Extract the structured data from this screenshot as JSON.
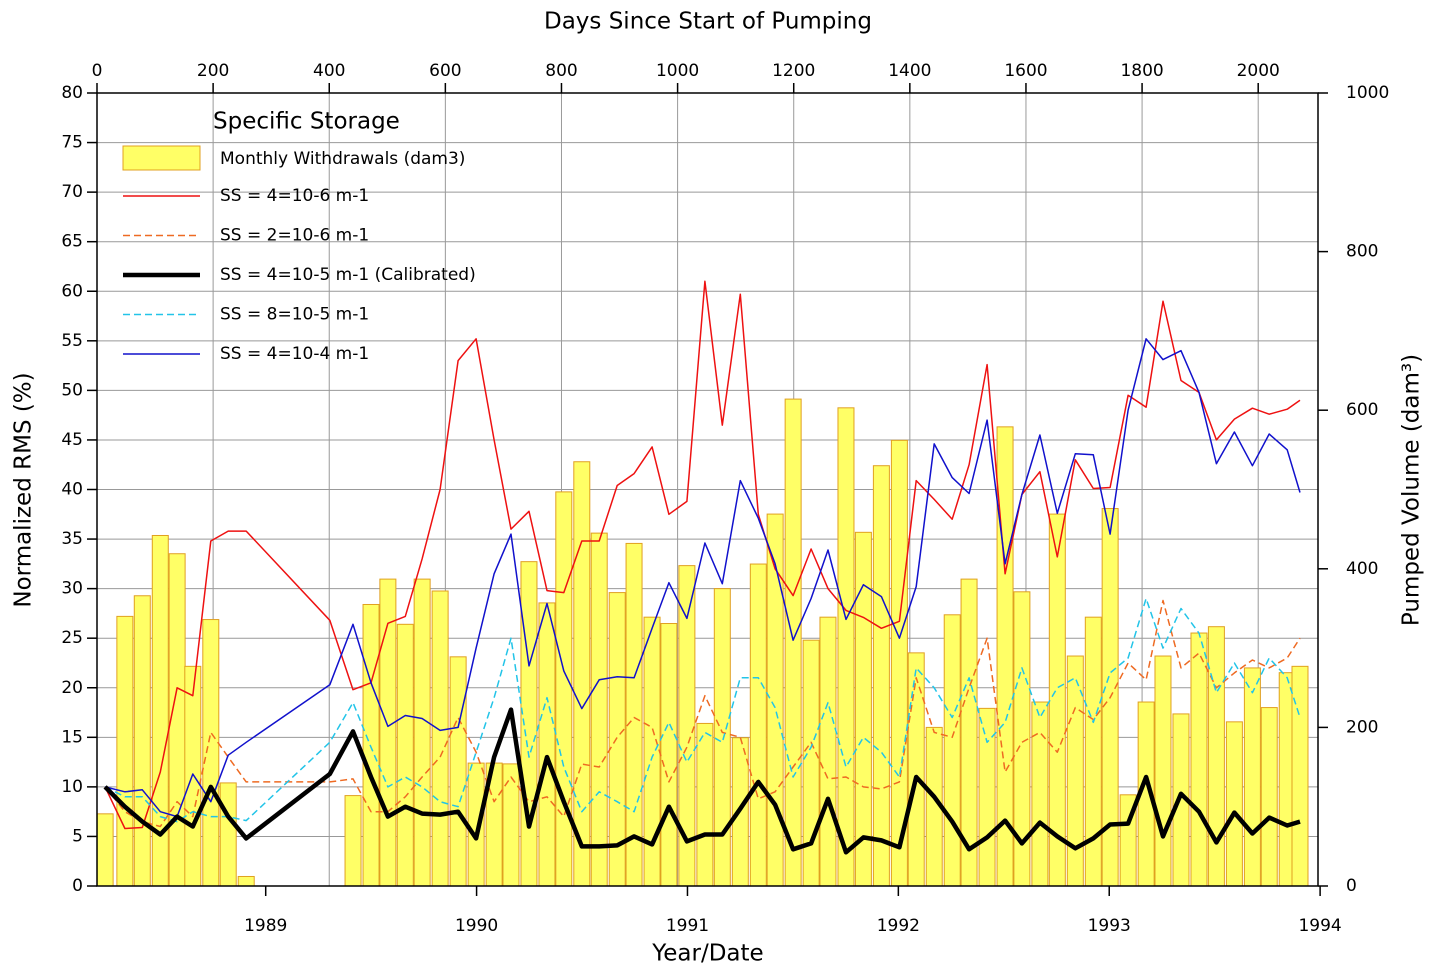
{
  "chart_data": {
    "type": "bar_line",
    "title": "Days Since Start of Pumping",
    "xlabel": "Year/Date",
    "ylabel": "Normalized RMS (%)",
    "y2label": "Pumped Volume (dam³)",
    "legend_title": "Specific Storage",
    "legend": "upper left",
    "grid": true,
    "xlim": [
      0,
      2103
    ],
    "xticks": [
      0,
      200,
      400,
      600,
      800,
      1000,
      1200,
      1400,
      1600,
      1800,
      2000
    ],
    "x2lim": [
      1988.7,
      1994.49
    ],
    "x2ticks": [
      {
        "value": 1989.5,
        "label": "1989"
      },
      {
        "value": 1990.5,
        "label": "1990"
      },
      {
        "value": 1991.5,
        "label": "1991"
      },
      {
        "value": 1992.5,
        "label": "1992"
      },
      {
        "value": 1993.5,
        "label": "1993"
      },
      {
        "value": 1994.5,
        "label": "1994"
      }
    ],
    "ylim": [
      0,
      80
    ],
    "yticks": [
      0,
      5,
      10,
      15,
      20,
      25,
      30,
      35,
      40,
      45,
      50,
      55,
      60,
      65,
      70,
      75,
      80
    ],
    "y2lim": [
      0,
      1000
    ],
    "y2ticks": [
      0,
      200,
      400,
      600,
      800,
      1000
    ],
    "bars": {
      "name": "Monthly Withdrawals (dam3)",
      "color": "#ffff66",
      "edge": "#e0a020",
      "axis": "y2",
      "x": [
        14,
        48,
        78,
        109,
        138,
        165,
        196,
        226,
        257,
        441,
        472,
        501,
        531,
        560,
        591,
        622,
        653,
        684,
        713,
        744,
        775,
        804,
        835,
        865,
        896,
        925,
        956,
        985,
        1016,
        1047,
        1077,
        1108,
        1139,
        1168,
        1199,
        1230,
        1259,
        1290,
        1320,
        1351,
        1382,
        1411,
        1442,
        1473,
        1502,
        1533,
        1564,
        1593,
        1624,
        1654,
        1685,
        1716,
        1745,
        1776,
        1807,
        1836,
        1867,
        1898,
        1928,
        1959,
        1990,
        2019,
        2050,
        2072
      ],
      "values": [
        91,
        340,
        366,
        442,
        419,
        277,
        336,
        130,
        12,
        114,
        355,
        387,
        330,
        387,
        372,
        289,
        155,
        155,
        154,
        409,
        357,
        497,
        535,
        445,
        370,
        432,
        339,
        331,
        404,
        205,
        375,
        187,
        406,
        469,
        614,
        310,
        339,
        603,
        446,
        530,
        562,
        294,
        200,
        342,
        387,
        224,
        579,
        371,
        232,
        469,
        290,
        339,
        476,
        115,
        232,
        290,
        217,
        319,
        327,
        207,
        275,
        225,
        269,
        277
      ]
    },
    "x": [
      14,
      48,
      78,
      109,
      138,
      165,
      196,
      226,
      257,
      401,
      441,
      472,
      501,
      531,
      560,
      591,
      622,
      653,
      684,
      713,
      744,
      775,
      804,
      835,
      865,
      896,
      925,
      956,
      985,
      1016,
      1047,
      1077,
      1108,
      1139,
      1168,
      1199,
      1230,
      1259,
      1290,
      1320,
      1351,
      1382,
      1411,
      1442,
      1473,
      1502,
      1533,
      1564,
      1593,
      1624,
      1654,
      1685,
      1716,
      1745,
      1776,
      1807,
      1836,
      1867,
      1898,
      1928,
      1959,
      1990,
      2019,
      2050,
      2072
    ],
    "series": [
      {
        "name": "SS = 4=10-6 m-1",
        "color": "#ee1111",
        "width": 1.5,
        "dashed": false,
        "values": [
          10,
          5.8,
          5.9,
          11.5,
          20,
          19.2,
          34.8,
          35.8,
          35.8,
          26.8,
          19.8,
          20.5,
          26.5,
          27.2,
          33,
          40,
          53,
          55.2,
          45,
          36,
          37.8,
          29.8,
          29.6,
          34.8,
          34.8,
          40.4,
          41.6,
          44.3,
          37.5,
          38.8,
          61,
          46.5,
          59.7,
          37.5,
          32,
          29.3,
          34,
          30,
          27.8,
          27.1,
          26,
          26.7,
          40.9,
          39,
          37,
          42.5,
          52.6,
          31.5,
          39.5,
          41.8,
          33.2,
          43,
          40.1,
          40.2,
          49.5,
          48.3,
          59,
          51,
          49.8,
          45,
          47.1,
          48.2,
          47.6,
          48.1,
          49
        ]
      },
      {
        "name": "SS = 2=10-6 m-1",
        "color": "#ee6a22",
        "width": 1.5,
        "dashed": true,
        "values": [
          10,
          7.5,
          6.5,
          6,
          8.5,
          7,
          15.5,
          13,
          10.5,
          10.5,
          10.8,
          7.5,
          7.5,
          9,
          11,
          13,
          17,
          13.5,
          8.5,
          11,
          8.5,
          9,
          7,
          12.3,
          12,
          15,
          17,
          16,
          10.5,
          14,
          19.2,
          15.5,
          15,
          8.8,
          9.5,
          12,
          14.5,
          10.8,
          11,
          10,
          9.8,
          10.5,
          21,
          15.5,
          15,
          20,
          25,
          11.5,
          14.5,
          15.5,
          13.5,
          18,
          16.8,
          19,
          22.5,
          20.8,
          28.8,
          22,
          23.5,
          20,
          21.5,
          22.8,
          22,
          23,
          25
        ]
      },
      {
        "name": "SS = 4=10-5 m-1 (Calibrated)",
        "color": "#000000",
        "width": 4.5,
        "dashed": false,
        "values": [
          10,
          8,
          6.5,
          5.2,
          7,
          6,
          10,
          7,
          4.8,
          11.3,
          15.6,
          11,
          7,
          8,
          7.3,
          7.2,
          7.5,
          4.8,
          13,
          17.8,
          6,
          13,
          8.5,
          4,
          4,
          4.1,
          5,
          4.2,
          8,
          4.5,
          5.2,
          5.2,
          7.8,
          10.5,
          8.2,
          3.7,
          4.3,
          8.8,
          3.4,
          4.9,
          4.6,
          3.9,
          11,
          9,
          6.5,
          3.7,
          4.9,
          6.6,
          4.3,
          6.4,
          5,
          3.8,
          4.8,
          6.2,
          6.3,
          11,
          5,
          9.3,
          7.5,
          4.4,
          7.4,
          5.3,
          6.9,
          6.1,
          6.5
        ]
      },
      {
        "name": "SS = 8=10-5 m-1",
        "color": "#22c4e8",
        "width": 1.5,
        "dashed": true,
        "values": [
          10,
          9,
          9,
          7,
          6.5,
          7.5,
          7,
          7,
          6.6,
          14.5,
          18.5,
          14,
          10,
          11,
          10,
          8.5,
          8,
          13.5,
          19,
          25,
          13,
          19,
          12,
          7.5,
          9.5,
          8.5,
          7.5,
          13,
          16.5,
          12.5,
          15.5,
          14.5,
          21,
          21,
          18,
          11,
          14,
          18.5,
          12,
          15,
          13.5,
          11,
          22,
          20,
          17,
          21,
          14.5,
          16.5,
          22,
          17,
          20,
          21,
          16.5,
          21.5,
          23,
          29,
          24,
          28,
          25.5,
          19.5,
          22.5,
          19.5,
          23,
          21,
          17
        ]
      },
      {
        "name": "SS = 4=10-4 m-1",
        "color": "#1111cc",
        "width": 1.5,
        "dashed": false,
        "values": [
          10,
          9.5,
          9.7,
          7.5,
          7,
          11.3,
          8.5,
          13.2,
          14.5,
          20.3,
          26.4,
          20.5,
          16.1,
          17.2,
          16.9,
          15.7,
          16,
          24,
          31.5,
          35.5,
          22.2,
          28.5,
          21.7,
          17.9,
          20.8,
          21.1,
          21,
          26,
          30.6,
          27,
          34.6,
          30.5,
          40.9,
          37.1,
          32.5,
          24.8,
          29,
          33.9,
          26.9,
          30.4,
          29.2,
          25,
          30.2,
          44.6,
          41.2,
          39.6,
          47,
          32.5,
          39.5,
          45.5,
          37.6,
          43.6,
          43.5,
          35.5,
          48,
          55.2,
          53.1,
          54,
          49.8,
          42.6,
          45.8,
          42.4,
          45.6,
          44,
          39.7
        ]
      }
    ]
  }
}
